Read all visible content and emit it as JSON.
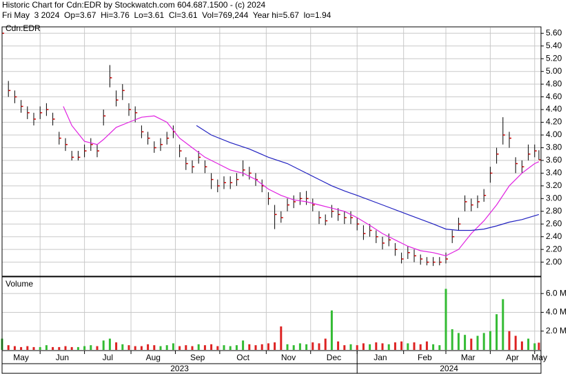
{
  "chart_data": {
    "type": "ohlc",
    "title": "Historic Chart for Cdn:EDR by Stockwatch.com 604.687.1500 - (c) 2024",
    "subtitle": "Fri May  3 2024  Op=3.67  Hi=3.76  Lo=3.61  Cl=3.61  Vol=769,244  Year hi=5.67  lo=1.94",
    "symbol_label": "Cdn:EDR",
    "volume_label": "Volume",
    "bar_color": "#000000",
    "close_color": "#cc0000",
    "up_color": "#33bb33",
    "down_color": "#dd2222",
    "grid": true,
    "xlim": [
      0,
      255
    ],
    "x": [
      0,
      3,
      6,
      9,
      12,
      15,
      18,
      21,
      24,
      27,
      30,
      33,
      36,
      39,
      42,
      45,
      48,
      51,
      54,
      57,
      60,
      63,
      66,
      69,
      72,
      75,
      78,
      81,
      84,
      87,
      90,
      93,
      96,
      99,
      102,
      105,
      108,
      111,
      114,
      117,
      120,
      123,
      126,
      129,
      132,
      135,
      138,
      141,
      144,
      147,
      150,
      153,
      156,
      159,
      162,
      165,
      168,
      171,
      174,
      177,
      180,
      183,
      186,
      189,
      192,
      195,
      198,
      201,
      204,
      207,
      210,
      213,
      216,
      219,
      222,
      225,
      228,
      231,
      234,
      237,
      240,
      243,
      246,
      249,
      252,
      254
    ],
    "high": [
      5.67,
      4.85,
      4.7,
      4.55,
      4.45,
      4.35,
      4.45,
      4.5,
      4.35,
      4.05,
      3.95,
      3.75,
      3.75,
      3.85,
      3.95,
      3.85,
      4.4,
      5.1,
      4.7,
      4.8,
      4.5,
      4.45,
      4.15,
      4.05,
      3.9,
      3.95,
      4.05,
      4.15,
      3.85,
      3.65,
      3.6,
      3.75,
      3.6,
      3.4,
      3.3,
      3.35,
      3.35,
      3.4,
      3.6,
      3.5,
      3.4,
      3.3,
      3.1,
      2.9,
      2.8,
      3.0,
      3.05,
      3.1,
      3.12,
      3.0,
      2.8,
      2.75,
      2.9,
      2.85,
      2.8,
      2.8,
      2.7,
      2.58,
      2.6,
      2.5,
      2.4,
      2.45,
      2.3,
      2.15,
      2.25,
      2.2,
      2.12,
      2.08,
      2.08,
      2.08,
      2.15,
      2.5,
      2.7,
      3.05,
      3.0,
      3.05,
      3.15,
      3.5,
      3.8,
      4.28,
      4.05,
      3.65,
      3.6,
      3.85,
      3.85,
      3.76
    ],
    "low": [
      5.5,
      4.6,
      4.5,
      4.35,
      4.25,
      4.15,
      4.25,
      4.3,
      4.15,
      3.85,
      3.75,
      3.6,
      3.6,
      3.65,
      3.75,
      3.65,
      4.15,
      4.75,
      4.45,
      4.55,
      4.3,
      4.2,
      3.95,
      3.85,
      3.72,
      3.75,
      3.85,
      3.95,
      3.65,
      3.45,
      3.4,
      3.55,
      3.4,
      3.15,
      3.1,
      3.15,
      3.15,
      3.2,
      3.35,
      3.3,
      3.2,
      3.1,
      2.9,
      2.52,
      2.62,
      2.8,
      2.85,
      2.9,
      2.9,
      2.8,
      2.6,
      2.58,
      2.7,
      2.65,
      2.6,
      2.6,
      2.5,
      2.35,
      2.4,
      2.3,
      2.2,
      2.25,
      2.1,
      1.98,
      2.05,
      2.0,
      1.96,
      1.95,
      1.94,
      1.95,
      1.98,
      2.3,
      2.5,
      2.8,
      2.8,
      2.85,
      2.95,
      3.25,
      3.55,
      3.85,
      3.8,
      3.4,
      3.4,
      3.6,
      3.65,
      3.61
    ],
    "close": [
      5.6,
      4.7,
      4.6,
      4.45,
      4.35,
      4.25,
      4.35,
      4.4,
      4.25,
      3.95,
      3.85,
      3.65,
      3.65,
      3.75,
      3.85,
      3.75,
      4.3,
      4.9,
      4.55,
      4.7,
      4.4,
      4.35,
      4.05,
      3.95,
      3.8,
      3.85,
      3.95,
      4.05,
      3.75,
      3.55,
      3.5,
      3.65,
      3.5,
      3.3,
      3.2,
      3.25,
      3.25,
      3.3,
      3.45,
      3.4,
      3.3,
      3.2,
      3.0,
      2.75,
      2.7,
      2.9,
      2.95,
      3.0,
      3.0,
      2.9,
      2.7,
      2.65,
      2.8,
      2.75,
      2.7,
      2.7,
      2.6,
      2.45,
      2.5,
      2.4,
      2.3,
      2.35,
      2.2,
      2.05,
      2.15,
      2.1,
      2.05,
      2.0,
      2.0,
      2.0,
      2.05,
      2.4,
      2.6,
      2.95,
      2.9,
      2.95,
      3.05,
      3.4,
      3.7,
      4.0,
      3.95,
      3.55,
      3.5,
      3.7,
      3.75,
      3.61
    ],
    "volume": [
      1.2,
      0.5,
      0.4,
      0.3,
      0.4,
      0.3,
      0.3,
      0.5,
      0.3,
      0.3,
      0.4,
      0.3,
      0.3,
      0.4,
      0.5,
      0.4,
      1.0,
      1.2,
      0.8,
      0.6,
      0.5,
      0.4,
      0.4,
      0.6,
      0.5,
      0.4,
      0.5,
      0.7,
      0.4,
      0.5,
      0.4,
      0.6,
      0.5,
      0.6,
      0.4,
      0.5,
      0.4,
      0.5,
      1.0,
      0.6,
      0.5,
      0.6,
      0.7,
      0.8,
      2.5,
      0.6,
      0.5,
      0.7,
      0.6,
      0.8,
      0.7,
      1.2,
      4.2,
      0.9,
      0.5,
      0.6,
      0.5,
      0.7,
      0.6,
      0.8,
      0.7,
      0.6,
      0.8,
      0.9,
      0.7,
      0.8,
      0.6,
      0.9,
      0.6,
      0.5,
      6.5,
      2.2,
      1.8,
      1.6,
      1.2,
      1.5,
      1.8,
      2.0,
      3.8,
      5.4,
      2.0,
      1.5,
      0.9,
      1.2,
      0.7,
      0.77
    ],
    "moving_averages": [
      {
        "color": "#e020e0",
        "x": [
          29,
          33,
          39,
          45,
          48,
          54,
          60,
          66,
          72,
          78,
          84,
          90,
          96,
          102,
          108,
          114,
          120,
          126,
          132,
          138,
          144,
          150,
          156,
          162,
          168,
          174,
          180,
          186,
          192,
          198,
          204,
          210,
          216,
          222,
          228,
          234,
          240,
          246,
          252,
          254
        ],
        "values": [
          4.45,
          4.15,
          3.9,
          3.85,
          3.93,
          4.12,
          4.2,
          4.28,
          4.3,
          4.2,
          3.95,
          3.8,
          3.65,
          3.55,
          3.45,
          3.4,
          3.3,
          3.15,
          3.05,
          2.98,
          2.95,
          2.9,
          2.85,
          2.8,
          2.7,
          2.58,
          2.45,
          2.35,
          2.25,
          2.18,
          2.15,
          2.1,
          2.2,
          2.45,
          2.65,
          2.9,
          3.2,
          3.4,
          3.55,
          3.58
        ]
      },
      {
        "color": "#2020c0",
        "x": [
          92,
          99,
          108,
          117,
          126,
          135,
          144,
          150,
          156,
          162,
          168,
          180,
          192,
          204,
          210,
          216,
          222,
          228,
          234,
          240,
          246,
          254
        ],
        "values": [
          4.15,
          4.0,
          3.88,
          3.78,
          3.65,
          3.55,
          3.4,
          3.3,
          3.2,
          3.12,
          3.05,
          2.9,
          2.75,
          2.6,
          2.52,
          2.5,
          2.5,
          2.52,
          2.57,
          2.63,
          2.67,
          2.75
        ]
      }
    ],
    "ylim": [
      1.79,
      5.69
    ],
    "yticks": [
      {
        "value": 2.0,
        "label": "2.00"
      },
      {
        "value": 2.2,
        "label": "2.20"
      },
      {
        "value": 2.4,
        "label": "2.40"
      },
      {
        "value": 2.6,
        "label": "2.60"
      },
      {
        "value": 2.8,
        "label": "2.80"
      },
      {
        "value": 3.0,
        "label": "3.00"
      },
      {
        "value": 3.2,
        "label": "3.20"
      },
      {
        "value": 3.4,
        "label": "3.40"
      },
      {
        "value": 3.6,
        "label": "3.60"
      },
      {
        "value": 3.8,
        "label": "3.80"
      },
      {
        "value": 4.0,
        "label": "4.00"
      },
      {
        "value": 4.2,
        "label": "4.20"
      },
      {
        "value": 4.4,
        "label": "4.40"
      },
      {
        "value": 4.6,
        "label": "4.60"
      },
      {
        "value": 4.8,
        "label": "4.80"
      },
      {
        "value": 5.0,
        "label": "5.00"
      },
      {
        "value": 5.2,
        "label": "5.20"
      },
      {
        "value": 5.4,
        "label": "5.40"
      },
      {
        "value": 5.6,
        "label": "5.60"
      }
    ],
    "y2lim": [
      0,
      7.7
    ],
    "y2ticks": [
      {
        "value": 2,
        "label": "2.0 M"
      },
      {
        "value": 4,
        "label": "4.0 M"
      },
      {
        "value": 6,
        "label": "6.0 M"
      }
    ],
    "xticks": [
      {
        "value": 0,
        "label": "May"
      },
      {
        "value": 18,
        "label": "Jun"
      },
      {
        "value": 39,
        "label": "Jul"
      },
      {
        "value": 61,
        "label": "Aug"
      },
      {
        "value": 82,
        "label": "Sep"
      },
      {
        "value": 103,
        "label": "Oct"
      },
      {
        "value": 125,
        "label": "Nov"
      },
      {
        "value": 146,
        "label": "Dec"
      },
      {
        "value": 168,
        "label": "Jan"
      },
      {
        "value": 190,
        "label": "Feb"
      },
      {
        "value": 210,
        "label": "Mar"
      },
      {
        "value": 231,
        "label": "Apr"
      },
      {
        "value": 252,
        "label": "May"
      }
    ],
    "years": [
      {
        "value": 0,
        "label": "2023"
      },
      {
        "value": 168,
        "label": "2024"
      }
    ]
  }
}
